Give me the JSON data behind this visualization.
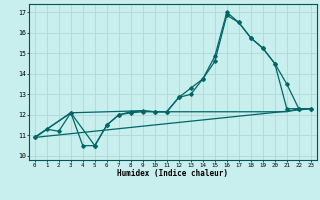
{
  "title": "",
  "xlabel": "Humidex (Indice chaleur)",
  "bg_color": "#c8eeee",
  "line_color": "#006666",
  "grid_color": "#b0d8d8",
  "xlim": [
    -0.5,
    23.5
  ],
  "ylim": [
    9.8,
    17.4
  ],
  "yticks": [
    10,
    11,
    12,
    13,
    14,
    15,
    16,
    17
  ],
  "xticks": [
    0,
    1,
    2,
    3,
    4,
    5,
    6,
    7,
    8,
    9,
    10,
    11,
    12,
    13,
    14,
    15,
    16,
    17,
    18,
    19,
    20,
    21,
    22,
    23
  ],
  "series1_x": [
    0,
    1,
    2,
    3,
    4,
    5,
    6,
    7,
    8,
    9,
    10,
    11,
    12,
    13,
    14,
    15,
    16,
    17,
    18,
    19,
    20,
    21,
    22,
    23
  ],
  "series1_y": [
    10.9,
    11.3,
    11.2,
    12.1,
    10.5,
    10.5,
    11.5,
    12.0,
    12.15,
    12.2,
    12.15,
    12.15,
    12.85,
    13.0,
    13.75,
    14.6,
    16.85,
    16.5,
    15.75,
    15.25,
    14.5,
    13.5,
    12.3,
    12.3
  ],
  "series2_x": [
    0,
    3,
    5,
    6,
    7,
    8,
    9,
    10,
    11,
    12,
    13,
    14,
    15,
    16,
    17,
    18,
    19,
    20,
    21,
    22,
    23
  ],
  "series2_y": [
    10.9,
    12.1,
    10.5,
    11.5,
    12.0,
    12.1,
    12.15,
    12.15,
    12.15,
    12.85,
    13.3,
    13.75,
    14.85,
    17.0,
    16.5,
    15.75,
    15.25,
    14.5,
    12.3,
    12.3,
    12.3
  ],
  "series3_x": [
    0,
    23
  ],
  "series3_y": [
    10.9,
    12.3
  ],
  "series4_x": [
    0,
    3,
    9,
    10,
    11,
    12,
    13,
    14,
    15,
    16,
    17,
    18,
    19,
    20,
    21,
    22,
    23
  ],
  "series4_y": [
    10.9,
    12.1,
    12.2,
    12.15,
    12.15,
    12.15,
    12.15,
    12.15,
    12.15,
    12.15,
    12.15,
    12.15,
    12.15,
    12.15,
    12.15,
    12.3,
    12.3
  ]
}
